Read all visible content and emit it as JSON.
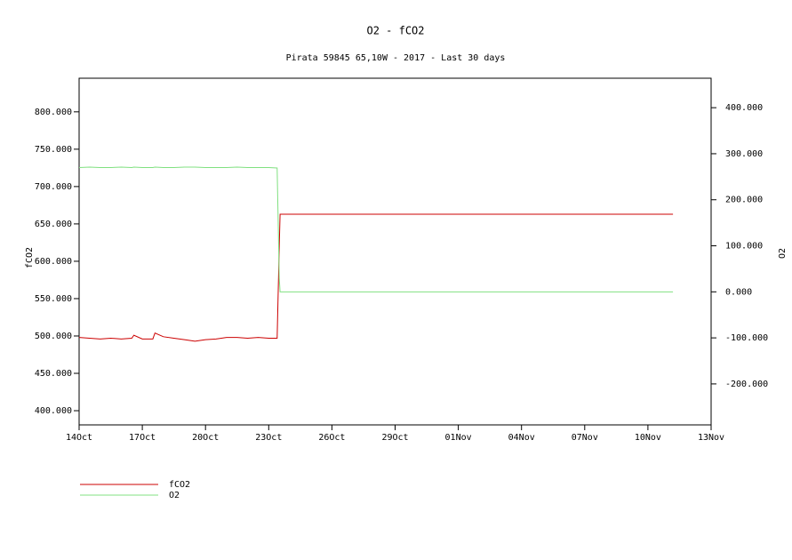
{
  "chart_data": {
    "type": "line",
    "title": "O2 - fCO2",
    "subtitle": "Pirata 59845 65,10W - 2017 - Last 30 days",
    "ylabel": "fCO2",
    "y2label": "O2",
    "x": [
      0,
      0.5,
      1,
      1.5,
      2,
      2.5,
      2.6,
      3,
      3.5,
      3.6,
      4,
      4.5,
      5,
      5.5,
      6,
      6.5,
      7,
      7.5,
      8,
      8.5,
      9,
      9.4,
      9.5,
      9.54,
      28.19
    ],
    "series": [
      {
        "name": "fCO2",
        "color": "#cc0000",
        "axis": "y",
        "values": [
          498,
          497,
          496,
          497,
          496,
          497,
          501,
          496,
          496,
          504,
          499,
          497,
          495,
          493,
          495,
          496,
          498,
          498,
          497,
          498,
          497,
          497,
          620,
          663,
          663
        ]
      },
      {
        "name": "O2",
        "color": "#80e080",
        "axis": "y2",
        "values": [
          270,
          271,
          270,
          270,
          271,
          270,
          271,
          270,
          270,
          271,
          270,
          270,
          271,
          271,
          270,
          270,
          270,
          271,
          270,
          270,
          270,
          269,
          30,
          0,
          0
        ]
      }
    ],
    "xlim": [
      0,
      30
    ],
    "xticks": [
      {
        "value": 0,
        "label": "14Oct"
      },
      {
        "value": 3,
        "label": "17Oct"
      },
      {
        "value": 6,
        "label": "20Oct"
      },
      {
        "value": 9,
        "label": "23Oct"
      },
      {
        "value": 12,
        "label": "26Oct"
      },
      {
        "value": 15,
        "label": "29Oct"
      },
      {
        "value": 18,
        "label": "01Nov"
      },
      {
        "value": 21,
        "label": "04Nov"
      },
      {
        "value": 24,
        "label": "07Nov"
      },
      {
        "value": 27,
        "label": "10Nov"
      },
      {
        "value": 30,
        "label": "13Nov"
      }
    ],
    "ylim": [
      381,
      845
    ],
    "yticks": [
      {
        "value": 400,
        "label": "400.000"
      },
      {
        "value": 450,
        "label": "450.000"
      },
      {
        "value": 500,
        "label": "500.000"
      },
      {
        "value": 550,
        "label": "550.000"
      },
      {
        "value": 600,
        "label": "600.000"
      },
      {
        "value": 650,
        "label": "650.000"
      },
      {
        "value": 700,
        "label": "700.000"
      },
      {
        "value": 750,
        "label": "750.000"
      },
      {
        "value": 800,
        "label": "800.000"
      }
    ],
    "y2lim": [
      -289,
      464
    ],
    "y2ticks": [
      {
        "value": -200,
        "label": "-200.000"
      },
      {
        "value": -100,
        "label": "-100.000"
      },
      {
        "value": 0,
        "label": "0.000"
      },
      {
        "value": 100,
        "label": "100.000"
      },
      {
        "value": 200,
        "label": "200.000"
      },
      {
        "value": 300,
        "label": "300.000"
      },
      {
        "value": 400,
        "label": "400.000"
      }
    ]
  }
}
